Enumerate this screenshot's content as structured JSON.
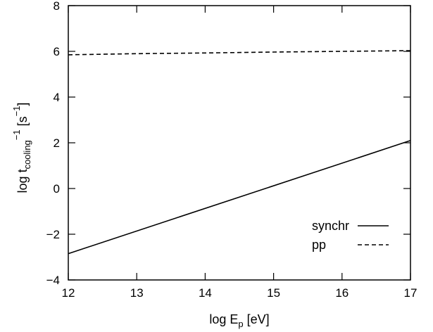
{
  "chart_data": {
    "type": "line",
    "xlabel": {
      "prefix": "log E",
      "subscript": "p",
      "suffix": " [eV]"
    },
    "ylabel": {
      "prefix": "log t",
      "subscript": "cooling",
      "superscript": "−1",
      "unit_open": " [s",
      "unit_sup": "−1",
      "unit_close": "]"
    },
    "xlim": [
      12,
      17
    ],
    "ylim": [
      -4,
      8
    ],
    "xticks": [
      12,
      13,
      14,
      15,
      16,
      17
    ],
    "yticks": [
      -4,
      -2,
      0,
      2,
      4,
      6,
      8
    ],
    "ytick_labels": [
      "−4",
      "−2",
      "0",
      "2",
      "4",
      "6",
      "8"
    ],
    "legend_position": "bottom-right",
    "series": [
      {
        "name": "synchr",
        "style": "solid",
        "color": "#000000",
        "x": [
          12,
          17
        ],
        "y": [
          -2.85,
          2.1
        ]
      },
      {
        "name": "pp",
        "style": "dashed",
        "color": "#000000",
        "x": [
          12,
          13,
          14,
          15,
          16,
          17
        ],
        "y": [
          5.85,
          5.9,
          5.93,
          5.97,
          6.0,
          6.03
        ]
      }
    ]
  }
}
